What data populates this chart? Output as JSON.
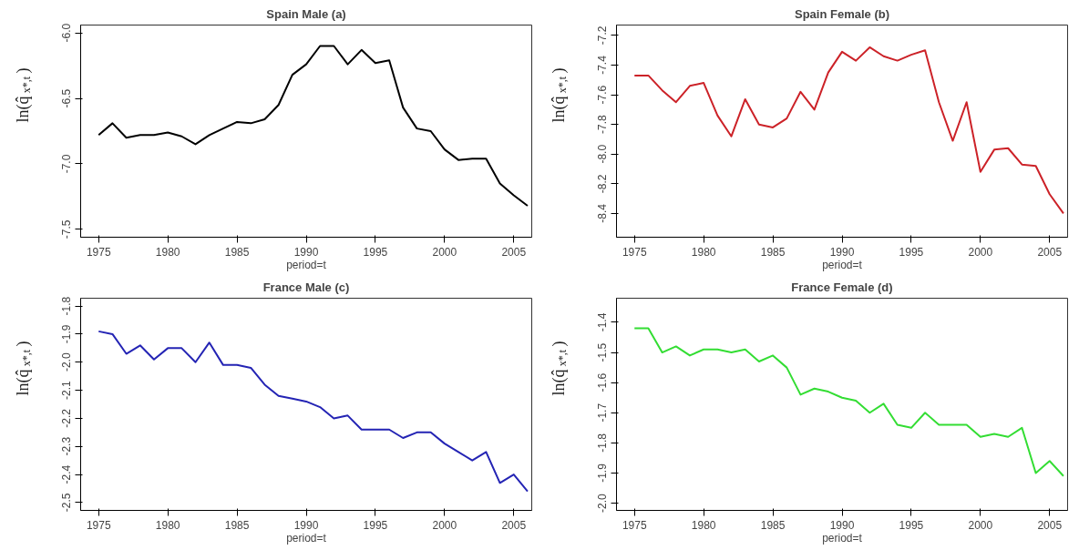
{
  "chart_data": [
    {
      "type": "line",
      "title": "Spain Male (a)",
      "xlabel": "period=t",
      "ylabel": "ln(q̂$_{x*,t}$)",
      "grid": false,
      "marker": "none",
      "line_style": "solid",
      "x": [
        1975,
        1976,
        1977,
        1978,
        1979,
        1980,
        1981,
        1982,
        1983,
        1984,
        1985,
        1986,
        1987,
        1988,
        1989,
        1990,
        1991,
        1992,
        1993,
        1994,
        1995,
        1996,
        1997,
        1998,
        1999,
        2000,
        2001,
        2002,
        2003,
        2004,
        2005,
        2006
      ],
      "xlim": [
        1973.7,
        2006.3
      ],
      "xticks": [
        1975,
        1980,
        1985,
        1990,
        1995,
        2000,
        2005
      ],
      "ylim": [
        -7.56,
        -5.94
      ],
      "yticks": [
        {
          "value": -6.0,
          "label": "-6.0"
        },
        {
          "value": -6.5,
          "label": "-6.5"
        },
        {
          "value": -7.0,
          "label": "-7.0"
        },
        {
          "value": -7.5,
          "label": "-7.5"
        }
      ],
      "series": [
        {
          "color": "#000000",
          "values": [
            -6.78,
            -6.69,
            -6.8,
            -6.78,
            -6.78,
            -6.76,
            -6.79,
            -6.85,
            -6.78,
            -6.73,
            -6.68,
            -6.69,
            -6.66,
            -6.55,
            -6.32,
            -6.24,
            -6.1,
            -6.1,
            -6.24,
            -6.13,
            -6.23,
            -6.21,
            -6.57,
            -6.73,
            -6.75,
            -6.89,
            -6.97,
            -6.96,
            -6.96,
            -7.15,
            -7.24,
            -7.32
          ]
        }
      ]
    },
    {
      "type": "line",
      "title": "Spain Female (b)",
      "xlabel": "period=t",
      "ylabel": "ln(q̂$_{x*,t}$)",
      "grid": false,
      "marker": "none",
      "line_style": "solid",
      "x": [
        1975,
        1976,
        1977,
        1978,
        1979,
        1980,
        1981,
        1982,
        1983,
        1984,
        1985,
        1986,
        1987,
        1988,
        1989,
        1990,
        1991,
        1992,
        1993,
        1994,
        1995,
        1996,
        1997,
        1998,
        1999,
        2000,
        2001,
        2002,
        2003,
        2004,
        2005,
        2006
      ],
      "xlim": [
        1973.7,
        2006.3
      ],
      "xticks": [
        1975,
        1980,
        1985,
        1990,
        1995,
        2000,
        2005
      ],
      "ylim": [
        -8.56,
        -7.13
      ],
      "yticks": [
        -7.2,
        -7.4,
        -7.6,
        -7.8,
        {
          "value": -8.0,
          "label": "-8.0"
        },
        -8.2,
        -8.4
      ],
      "series": [
        {
          "color": "#cc2228",
          "values": [
            -7.47,
            -7.47,
            -7.57,
            -7.65,
            -7.54,
            -7.52,
            -7.74,
            -7.88,
            -7.63,
            -7.8,
            -7.82,
            -7.76,
            -7.58,
            -7.7,
            -7.45,
            -7.31,
            -7.37,
            -7.28,
            -7.34,
            -7.37,
            -7.33,
            -7.3,
            -7.65,
            -7.91,
            -7.65,
            -8.12,
            -7.97,
            -7.96,
            -8.07,
            -8.08,
            -8.27,
            -8.4
          ]
        }
      ]
    },
    {
      "type": "line",
      "title": "France Male (c)",
      "xlabel": "period=t",
      "ylabel": "ln(q̂$_{x*,t}$)",
      "grid": false,
      "marker": "none",
      "line_style": "solid",
      "x": [
        1975,
        1976,
        1977,
        1978,
        1979,
        1980,
        1981,
        1982,
        1983,
        1984,
        1985,
        1986,
        1987,
        1988,
        1989,
        1990,
        1991,
        1992,
        1993,
        1994,
        1995,
        1996,
        1997,
        1998,
        1999,
        2000,
        2001,
        2002,
        2003,
        2004,
        2005,
        2006
      ],
      "xlim": [
        1973.7,
        2006.3
      ],
      "xticks": [
        1975,
        1980,
        1985,
        1990,
        1995,
        2000,
        2005
      ],
      "ylim": [
        -2.528,
        -1.772
      ],
      "yticks": [
        -1.8,
        -1.9,
        {
          "value": -2.0,
          "label": "-2.0"
        },
        -2.1,
        -2.2,
        -2.3,
        -2.4,
        -2.5
      ],
      "series": [
        {
          "color": "#2424b4",
          "values": [
            -1.89,
            -1.9,
            -1.97,
            -1.94,
            -1.99,
            -1.95,
            -1.95,
            -2.0,
            -1.93,
            -2.01,
            -2.01,
            -2.02,
            -2.08,
            -2.12,
            -2.13,
            -2.14,
            -2.16,
            -2.2,
            -2.19,
            -2.24,
            -2.24,
            -2.24,
            -2.27,
            -2.25,
            -2.25,
            -2.29,
            -2.32,
            -2.35,
            -2.32,
            -2.43,
            -2.4,
            -2.46
          ]
        }
      ]
    },
    {
      "type": "line",
      "title": "France Female (d)",
      "xlabel": "period=t",
      "ylabel": "ln(q̂$_{x*,t}$)",
      "grid": false,
      "marker": "none",
      "line_style": "solid",
      "x": [
        1975,
        1976,
        1977,
        1978,
        1979,
        1980,
        1981,
        1982,
        1983,
        1984,
        1985,
        1986,
        1987,
        1988,
        1989,
        1990,
        1991,
        1992,
        1993,
        1994,
        1995,
        1996,
        1997,
        1998,
        1999,
        2000,
        2001,
        2002,
        2003,
        2004,
        2005,
        2006
      ],
      "xlim": [
        1973.7,
        2006.3
      ],
      "xticks": [
        1975,
        1980,
        1985,
        1990,
        1995,
        2000,
        2005
      ],
      "ylim": [
        -2.024,
        -1.32
      ],
      "yticks": [
        -1.4,
        -1.5,
        -1.6,
        -1.7,
        -1.8,
        -1.9,
        {
          "value": -2.0,
          "label": "-2.0"
        }
      ],
      "series": [
        {
          "color": "#33dd33",
          "values": [
            -1.42,
            -1.42,
            -1.5,
            -1.48,
            -1.51,
            -1.49,
            -1.49,
            -1.5,
            -1.49,
            -1.53,
            -1.51,
            -1.55,
            -1.64,
            -1.62,
            -1.63,
            -1.65,
            -1.66,
            -1.7,
            -1.67,
            -1.74,
            -1.75,
            -1.7,
            -1.74,
            -1.74,
            -1.74,
            -1.78,
            -1.77,
            -1.78,
            -1.75,
            -1.9,
            -1.86,
            -1.91
          ]
        }
      ]
    }
  ]
}
